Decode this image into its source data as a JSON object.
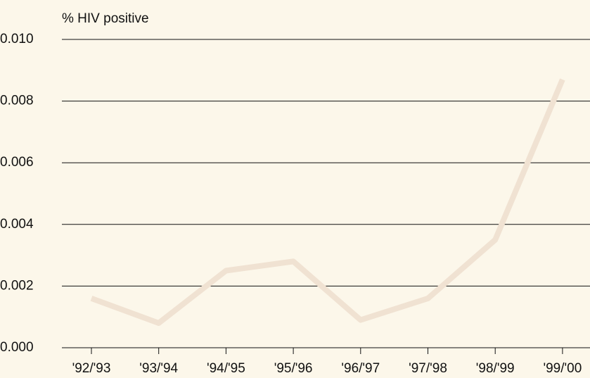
{
  "chart_data": {
    "type": "line",
    "y_label": "% HIV positive",
    "categories": [
      "'92/'93",
      "'93/'94",
      "'94/'95",
      "'95/'96",
      "'96/'97",
      "'97/'98",
      "'98/'99",
      "'99/'00"
    ],
    "series": [
      {
        "name": "HIV positive",
        "color": "#f0e2d2",
        "values": [
          0.0016,
          0.0008,
          0.0025,
          0.0028,
          0.0009,
          0.0016,
          0.0035,
          0.0087
        ]
      }
    ],
    "ylim": [
      0,
      0.01
    ],
    "yticks": [
      {
        "value": 0,
        "label": "0.000"
      },
      0.002,
      0.004,
      0.006,
      0.008,
      {
        "value": 0.01,
        "label": "0.010"
      }
    ],
    "grid": true
  }
}
